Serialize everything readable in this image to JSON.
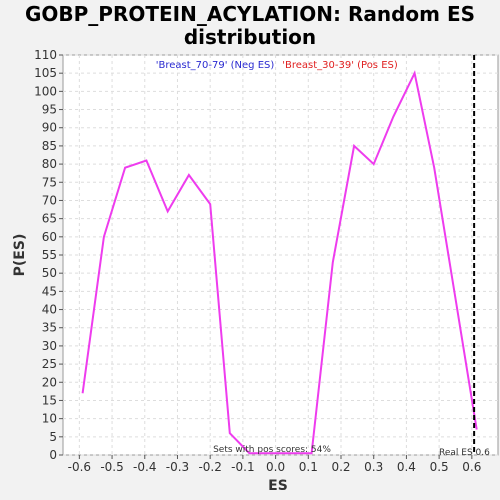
{
  "chart_data": {
    "type": "line",
    "title_line1": "GOBP_PROTEIN_ACYLATION: Random ES",
    "title_line2": "distribution",
    "xlabel": "ES",
    "ylabel": "P(ES)",
    "xlim": [
      -0.65,
      0.68
    ],
    "ylim": [
      0,
      110
    ],
    "x_ticks": [
      "-0.6",
      "-0.5",
      "-0.4",
      "-0.3",
      "-0.2",
      "-0.1",
      "0.0",
      "0.1",
      "0.2",
      "0.3",
      "0.4",
      "0.5",
      "0.6"
    ],
    "y_ticks": [
      "0",
      "5",
      "10",
      "15",
      "20",
      "25",
      "30",
      "35",
      "40",
      "45",
      "50",
      "55",
      "60",
      "65",
      "70",
      "75",
      "80",
      "85",
      "90",
      "95",
      "100",
      "105",
      "110"
    ],
    "grid": true,
    "legend": {
      "neg_label": "'Breast_70-79' (Neg ES)",
      "neg_color": "#2a2ad0",
      "pos_label": "'Breast_30-39' (Pos ES)",
      "pos_color": "#e02020"
    },
    "series": [
      {
        "color": "#ee3cee",
        "x": [
          -0.59,
          -0.525,
          -0.46,
          -0.395,
          -0.33,
          -0.265,
          -0.2,
          -0.14,
          -0.08,
          0.11,
          0.175,
          0.24,
          0.3,
          0.36,
          0.425,
          0.485,
          0.55,
          0.615
        ],
        "y": [
          17,
          60,
          79,
          81,
          67,
          77,
          69,
          6,
          0.5,
          0.5,
          53,
          85,
          80,
          93,
          105,
          79,
          43,
          7
        ]
      }
    ],
    "real_es": 0.607,
    "real_es_label": "Real ES 0.6",
    "pos_scores_label": "Sets with pos scores: 54%"
  }
}
